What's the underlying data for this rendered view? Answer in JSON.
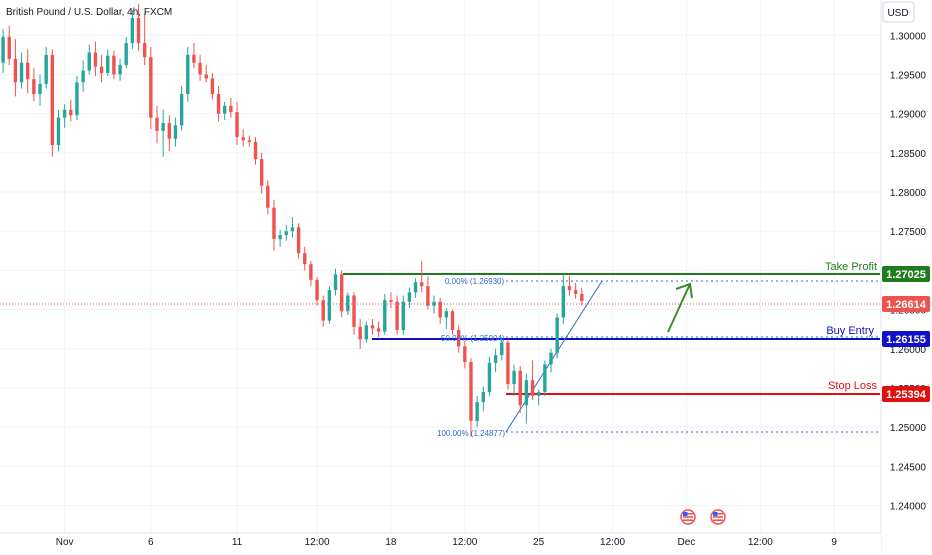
{
  "header": {
    "symbol_title": "British Pound / U.S. Dollar, 4h, FXCM"
  },
  "currency_label": "USD",
  "colors": {
    "up": "#26a69a",
    "down": "#ef5350",
    "tp": "#1e7b1e",
    "entry": "#1010c8",
    "sl": "#e01010",
    "fib": "#2e6bd6",
    "current": "#ef5350",
    "grid": "#f0f3fa",
    "axis_text": "#131722",
    "arrow": "#3c8a2e"
  },
  "levels": {
    "take_profit": {
      "label": "Take Profit",
      "value": 1.27025,
      "display": "1.27025"
    },
    "buy_entry": {
      "label": "Buy Entry",
      "value": 1.26155,
      "display": "1.26155"
    },
    "stop_loss": {
      "label": "Stop Loss",
      "value": 1.25394,
      "display": "1.25394"
    },
    "current": {
      "value": 1.26614,
      "display": "1.26614"
    }
  },
  "fib_labels": {
    "f0": "0.00% (1.26930)",
    "f50": "50.00% (1.25904)",
    "f100": "100.00% (1.24877)"
  },
  "annotations": {
    "arrow_icon": "up-arrow-icon",
    "flag_icons": [
      "us-flag-icon",
      "us-flag-icon"
    ]
  },
  "chart_data": {
    "type": "candlestick",
    "title": "British Pound / U.S. Dollar, 4h, FXCM",
    "xlabel": "",
    "ylabel": "",
    "ylim": [
      1.2365,
      1.3045
    ],
    "y_ticks": [
      {
        "value": 1.3,
        "label": "1.30000"
      },
      {
        "value": 1.295,
        "label": "1.29500"
      },
      {
        "value": 1.29,
        "label": "1.29000"
      },
      {
        "value": 1.285,
        "label": "1.28500"
      },
      {
        "value": 1.28,
        "label": "1.28000"
      },
      {
        "value": 1.275,
        "label": "1.27500"
      },
      {
        "value": 1.27,
        "label": "1.27000"
      },
      {
        "value": 1.265,
        "label": "1.26500"
      },
      {
        "value": 1.26,
        "label": "1.26000"
      },
      {
        "value": 1.255,
        "label": "1.25500"
      },
      {
        "value": 1.25,
        "label": "1.25000"
      },
      {
        "value": 1.245,
        "label": "1.24500"
      },
      {
        "value": 1.24,
        "label": "1.24000"
      }
    ],
    "x_ticks": [
      {
        "index": 10,
        "label": "Nov"
      },
      {
        "index": 24,
        "label": "6"
      },
      {
        "index": 38,
        "label": "11"
      },
      {
        "index": 51,
        "label": "12:00"
      },
      {
        "index": 63,
        "label": "18"
      },
      {
        "index": 75,
        "label": "12:00"
      },
      {
        "index": 87,
        "label": "25"
      },
      {
        "index": 99,
        "label": "12:00"
      },
      {
        "index": 111,
        "label": "Dec"
      },
      {
        "index": 123,
        "label": "12:00"
      },
      {
        "index": 135,
        "label": "9"
      }
    ],
    "x_range": [
      -0.5,
      142.6
    ],
    "candles": [
      [
        1.2965,
        1.3008,
        1.2952,
        1.2998
      ],
      [
        1.2998,
        1.3012,
        1.2962,
        1.297
      ],
      [
        1.297,
        1.2995,
        1.2922,
        1.294
      ],
      [
        1.294,
        1.2978,
        1.2932,
        1.2965
      ],
      [
        1.2965,
        1.2982,
        1.2926,
        1.2944
      ],
      [
        1.2944,
        1.2958,
        1.2916,
        1.2925
      ],
      [
        1.2925,
        1.295,
        1.291,
        1.2938
      ],
      [
        1.2938,
        1.2985,
        1.2932,
        1.2975
      ],
      [
        1.2975,
        1.2982,
        1.2845,
        1.286
      ],
      [
        1.286,
        1.2905,
        1.2852,
        1.2895
      ],
      [
        1.2895,
        1.2912,
        1.2882,
        1.2905
      ],
      [
        1.2905,
        1.2918,
        1.289,
        1.2898
      ],
      [
        1.2898,
        1.2948,
        1.2892,
        1.294
      ],
      [
        1.294,
        1.2968,
        1.2928,
        1.2955
      ],
      [
        1.2955,
        1.2988,
        1.295,
        1.2978
      ],
      [
        1.2978,
        1.2992,
        1.2948,
        1.296
      ],
      [
        1.296,
        1.2975,
        1.294,
        1.2952
      ],
      [
        1.2952,
        1.2982,
        1.2948,
        1.2974
      ],
      [
        1.2974,
        1.298,
        1.2944,
        1.295
      ],
      [
        1.295,
        1.297,
        1.2942,
        1.2962
      ],
      [
        1.2962,
        1.2998,
        1.2958,
        1.299
      ],
      [
        1.299,
        1.3032,
        1.2982,
        1.3022
      ],
      [
        1.3022,
        1.304,
        1.298,
        1.299
      ],
      [
        1.299,
        1.3028,
        1.2962,
        1.2972
      ],
      [
        1.2972,
        1.2985,
        1.288,
        1.2895
      ],
      [
        1.2895,
        1.291,
        1.2862,
        1.2878
      ],
      [
        1.2878,
        1.2905,
        1.2845,
        1.2888
      ],
      [
        1.2888,
        1.2898,
        1.2852,
        1.2868
      ],
      [
        1.2868,
        1.2895,
        1.2858,
        1.2885
      ],
      [
        1.2885,
        1.2935,
        1.2878,
        1.2925
      ],
      [
        1.2925,
        1.2985,
        1.2915,
        1.2975
      ],
      [
        1.2975,
        1.299,
        1.2958,
        1.2965
      ],
      [
        1.2965,
        1.2975,
        1.2942,
        1.295
      ],
      [
        1.295,
        1.2962,
        1.294,
        1.2945
      ],
      [
        1.2945,
        1.2952,
        1.2918,
        1.2925
      ],
      [
        1.2925,
        1.2935,
        1.289,
        1.29
      ],
      [
        1.29,
        1.2915,
        1.2892,
        1.291
      ],
      [
        1.291,
        1.292,
        1.2895,
        1.2902
      ],
      [
        1.2902,
        1.2915,
        1.286,
        1.287
      ],
      [
        1.287,
        1.288,
        1.2858,
        1.2866
      ],
      [
        1.2866,
        1.2872,
        1.2858,
        1.2864
      ],
      [
        1.2864,
        1.287,
        1.2835,
        1.2842
      ],
      [
        1.2842,
        1.285,
        1.2798,
        1.2808
      ],
      [
        1.2808,
        1.2815,
        1.2772,
        1.278
      ],
      [
        1.278,
        1.279,
        1.2725,
        1.274
      ],
      [
        1.274,
        1.2752,
        1.273,
        1.2745
      ],
      [
        1.2745,
        1.2758,
        1.2738,
        1.275
      ],
      [
        1.275,
        1.2768,
        1.2742,
        1.2755
      ],
      [
        1.2755,
        1.276,
        1.2715,
        1.2722
      ],
      [
        1.2722,
        1.273,
        1.27,
        1.2708
      ],
      [
        1.2708,
        1.2712,
        1.268,
        1.2688
      ],
      [
        1.2688,
        1.2692,
        1.2655,
        1.2662
      ],
      [
        1.2662,
        1.2668,
        1.2628,
        1.2636
      ],
      [
        1.2636,
        1.268,
        1.2632,
        1.2675
      ],
      [
        1.2675,
        1.2702,
        1.2668,
        1.2695
      ],
      [
        1.2695,
        1.27,
        1.264,
        1.2648
      ],
      [
        1.2648,
        1.2672,
        1.2643,
        1.2668
      ],
      [
        1.2668,
        1.2672,
        1.2618,
        1.2628
      ],
      [
        1.2628,
        1.2638,
        1.26,
        1.2612
      ],
      [
        1.2612,
        1.2635,
        1.2608,
        1.263
      ],
      [
        1.263,
        1.2638,
        1.2618,
        1.2626
      ],
      [
        1.2626,
        1.2635,
        1.2615,
        1.2622
      ],
      [
        1.2622,
        1.267,
        1.2618,
        1.2662
      ],
      [
        1.2662,
        1.2672,
        1.2652,
        1.266
      ],
      [
        1.266,
        1.2668,
        1.2618,
        1.2624
      ],
      [
        1.2624,
        1.2668,
        1.2618,
        1.266
      ],
      [
        1.266,
        1.2678,
        1.2652,
        1.2672
      ],
      [
        1.2672,
        1.269,
        1.2665,
        1.2685
      ],
      [
        1.2685,
        1.2712,
        1.2672,
        1.268
      ],
      [
        1.268,
        1.2692,
        1.265,
        1.2655
      ],
      [
        1.2655,
        1.2668,
        1.2645,
        1.266
      ],
      [
        1.266,
        1.2665,
        1.2632,
        1.264
      ],
      [
        1.264,
        1.2652,
        1.2625,
        1.2648
      ],
      [
        1.2648,
        1.265,
        1.2618,
        1.2624
      ],
      [
        1.2624,
        1.263,
        1.2595,
        1.2603
      ],
      [
        1.2603,
        1.261,
        1.2575,
        1.2583
      ],
      [
        1.2583,
        1.2588,
        1.2488,
        1.2508
      ],
      [
        1.2508,
        1.254,
        1.25,
        1.2532
      ],
      [
        1.2532,
        1.2552,
        1.252,
        1.2545
      ],
      [
        1.2545,
        1.259,
        1.254,
        1.2582
      ],
      [
        1.2582,
        1.26,
        1.257,
        1.2592
      ],
      [
        1.2592,
        1.2615,
        1.2585,
        1.2608
      ],
      [
        1.2608,
        1.2612,
        1.2548,
        1.2555
      ],
      [
        1.2555,
        1.258,
        1.254,
        1.2572
      ],
      [
        1.2572,
        1.2578,
        1.2518,
        1.2528
      ],
      [
        1.2528,
        1.2568,
        1.2505,
        1.256
      ],
      [
        1.256,
        1.2585,
        1.2535,
        1.254
      ],
      [
        1.254,
        1.2548,
        1.2528,
        1.2545
      ],
      [
        1.2545,
        1.2585,
        1.254,
        1.258
      ],
      [
        1.258,
        1.26,
        1.257,
        1.2595
      ],
      [
        1.2595,
        1.2645,
        1.2588,
        1.264
      ],
      [
        1.264,
        1.2695,
        1.2632,
        1.268
      ],
      [
        1.268,
        1.2693,
        1.2668,
        1.2675
      ],
      [
        1.2675,
        1.2684,
        1.2664,
        1.267
      ],
      [
        1.267,
        1.2678,
        1.2655,
        1.2661
      ]
    ]
  }
}
